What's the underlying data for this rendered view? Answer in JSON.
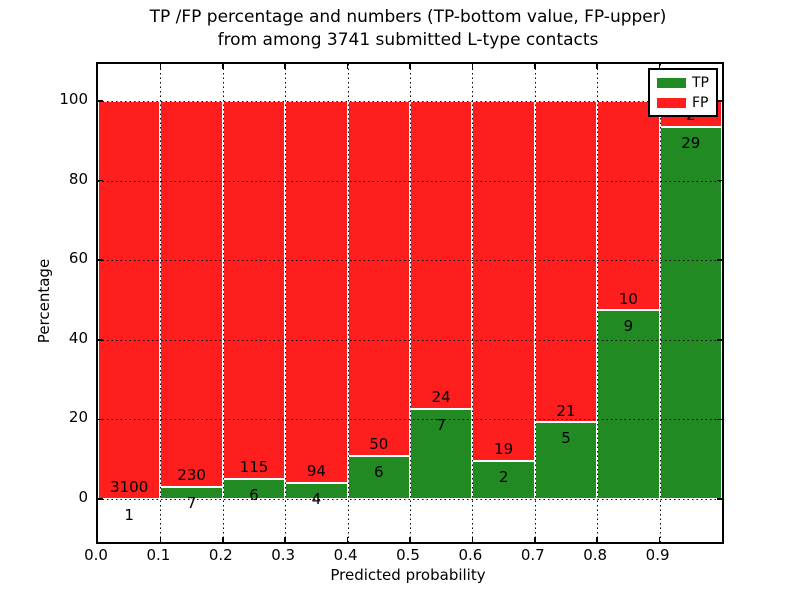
{
  "title": {
    "line1": "TP /FP percentage and numbers (TP-bottom value, FP-upper)",
    "line2": "from among 3741 submitted L-type contacts"
  },
  "axes": {
    "ylabel": "Percentage",
    "xlabel": "Predicted probability"
  },
  "legend": {
    "entries": [
      {
        "label": "TP",
        "color": "#228a22"
      },
      {
        "label": "FP",
        "color": "#ff1e1e"
      }
    ]
  },
  "colors": {
    "tp_green": "#228a22",
    "fp_red": "#ff1e1e",
    "grid": "#000000",
    "bar_edge": "#ffffff"
  },
  "chart_data": {
    "type": "bar",
    "stacked": true,
    "normalized": "percent_of_bin_total",
    "title": "TP /FP percentage and numbers (TP-bottom value, FP-upper) from among 3741 submitted L-type contacts",
    "xlabel": "Predicted probability",
    "ylabel": "Percentage",
    "total_contacts": 3741,
    "bin_edges": [
      0.0,
      0.1,
      0.2,
      0.3,
      0.4,
      0.5,
      0.6,
      0.7,
      0.8,
      0.9,
      1.0
    ],
    "categories": [
      "0.0-0.1",
      "0.1-0.2",
      "0.2-0.3",
      "0.3-0.4",
      "0.4-0.5",
      "0.5-0.6",
      "0.6-0.7",
      "0.7-0.8",
      "0.8-0.9",
      "0.9-1.0"
    ],
    "series": [
      {
        "name": "TP",
        "color": "#228a22",
        "counts": [
          1,
          7,
          6,
          4,
          6,
          7,
          2,
          5,
          9,
          29
        ],
        "percent": [
          0.03,
          2.95,
          4.96,
          4.08,
          10.71,
          22.58,
          9.52,
          19.23,
          47.37,
          93.55
        ]
      },
      {
        "name": "FP",
        "color": "#ff1e1e",
        "counts": [
          3100,
          230,
          115,
          94,
          50,
          24,
          19,
          21,
          10,
          2
        ],
        "percent": [
          99.97,
          97.05,
          95.04,
          95.92,
          89.29,
          77.42,
          90.48,
          80.77,
          52.63,
          6.45
        ]
      }
    ],
    "yticks": {
      "values": [
        0,
        20,
        40,
        60,
        80,
        100
      ],
      "labels": [
        "0",
        "20",
        "40",
        "60",
        "80",
        "100"
      ]
    },
    "xticks": {
      "values": [
        0.0,
        0.1,
        0.2,
        0.3,
        0.4,
        0.5,
        0.6,
        0.7,
        0.8,
        0.9
      ],
      "labels": [
        "0.0",
        "0.1",
        "0.2",
        "0.3",
        "0.4",
        "0.5",
        "0.6",
        "0.7",
        "0.8",
        "0.9"
      ]
    },
    "xlim": [
      0.0,
      1.0
    ],
    "ylim_display": [
      -10.8,
      109.3
    ],
    "grid": true,
    "grid_style": "dotted",
    "legend_position": "upper right",
    "annotation_rule": "FP count printed just above the TP/FP boundary, TP count just below it"
  }
}
